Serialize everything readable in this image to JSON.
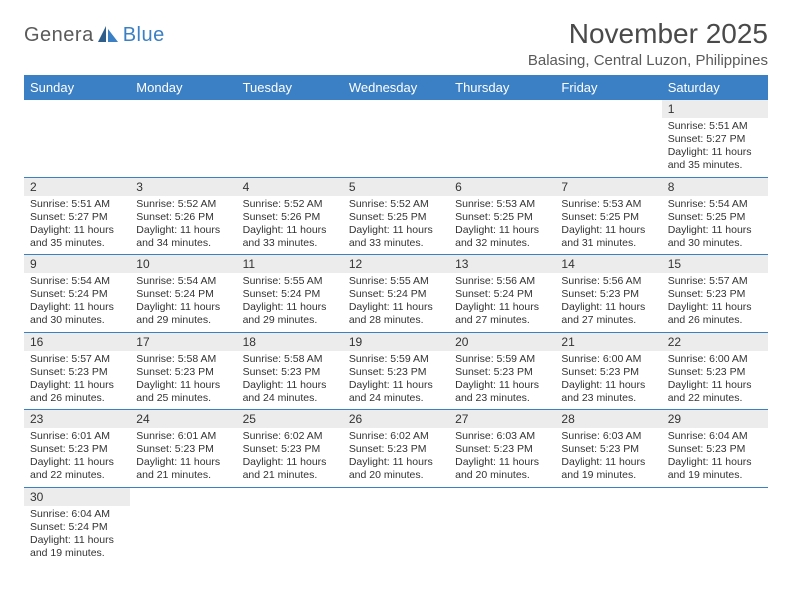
{
  "logo": {
    "text1": "Genera",
    "text2": "Blue"
  },
  "title": "November 2025",
  "subtitle": "Balasing, Central Luzon, Philippines",
  "colors": {
    "header_bg": "#3b7fc4",
    "header_fg": "#ffffff",
    "daynum_bg": "#ececec",
    "rule": "#3b7fc4",
    "text": "#333333",
    "logo_gray": "#5a5a5a",
    "logo_blue": "#3b7fc4"
  },
  "day_names": [
    "Sunday",
    "Monday",
    "Tuesday",
    "Wednesday",
    "Thursday",
    "Friday",
    "Saturday"
  ],
  "weeks": [
    [
      null,
      null,
      null,
      null,
      null,
      null,
      {
        "n": "1",
        "sr": "5:51 AM",
        "ss": "5:27 PM",
        "dl": "11 hours and 35 minutes."
      }
    ],
    [
      {
        "n": "2",
        "sr": "5:51 AM",
        "ss": "5:27 PM",
        "dl": "11 hours and 35 minutes."
      },
      {
        "n": "3",
        "sr": "5:52 AM",
        "ss": "5:26 PM",
        "dl": "11 hours and 34 minutes."
      },
      {
        "n": "4",
        "sr": "5:52 AM",
        "ss": "5:26 PM",
        "dl": "11 hours and 33 minutes."
      },
      {
        "n": "5",
        "sr": "5:52 AM",
        "ss": "5:25 PM",
        "dl": "11 hours and 33 minutes."
      },
      {
        "n": "6",
        "sr": "5:53 AM",
        "ss": "5:25 PM",
        "dl": "11 hours and 32 minutes."
      },
      {
        "n": "7",
        "sr": "5:53 AM",
        "ss": "5:25 PM",
        "dl": "11 hours and 31 minutes."
      },
      {
        "n": "8",
        "sr": "5:54 AM",
        "ss": "5:25 PM",
        "dl": "11 hours and 30 minutes."
      }
    ],
    [
      {
        "n": "9",
        "sr": "5:54 AM",
        "ss": "5:24 PM",
        "dl": "11 hours and 30 minutes."
      },
      {
        "n": "10",
        "sr": "5:54 AM",
        "ss": "5:24 PM",
        "dl": "11 hours and 29 minutes."
      },
      {
        "n": "11",
        "sr": "5:55 AM",
        "ss": "5:24 PM",
        "dl": "11 hours and 29 minutes."
      },
      {
        "n": "12",
        "sr": "5:55 AM",
        "ss": "5:24 PM",
        "dl": "11 hours and 28 minutes."
      },
      {
        "n": "13",
        "sr": "5:56 AM",
        "ss": "5:24 PM",
        "dl": "11 hours and 27 minutes."
      },
      {
        "n": "14",
        "sr": "5:56 AM",
        "ss": "5:23 PM",
        "dl": "11 hours and 27 minutes."
      },
      {
        "n": "15",
        "sr": "5:57 AM",
        "ss": "5:23 PM",
        "dl": "11 hours and 26 minutes."
      }
    ],
    [
      {
        "n": "16",
        "sr": "5:57 AM",
        "ss": "5:23 PM",
        "dl": "11 hours and 26 minutes."
      },
      {
        "n": "17",
        "sr": "5:58 AM",
        "ss": "5:23 PM",
        "dl": "11 hours and 25 minutes."
      },
      {
        "n": "18",
        "sr": "5:58 AM",
        "ss": "5:23 PM",
        "dl": "11 hours and 24 minutes."
      },
      {
        "n": "19",
        "sr": "5:59 AM",
        "ss": "5:23 PM",
        "dl": "11 hours and 24 minutes."
      },
      {
        "n": "20",
        "sr": "5:59 AM",
        "ss": "5:23 PM",
        "dl": "11 hours and 23 minutes."
      },
      {
        "n": "21",
        "sr": "6:00 AM",
        "ss": "5:23 PM",
        "dl": "11 hours and 23 minutes."
      },
      {
        "n": "22",
        "sr": "6:00 AM",
        "ss": "5:23 PM",
        "dl": "11 hours and 22 minutes."
      }
    ],
    [
      {
        "n": "23",
        "sr": "6:01 AM",
        "ss": "5:23 PM",
        "dl": "11 hours and 22 minutes."
      },
      {
        "n": "24",
        "sr": "6:01 AM",
        "ss": "5:23 PM",
        "dl": "11 hours and 21 minutes."
      },
      {
        "n": "25",
        "sr": "6:02 AM",
        "ss": "5:23 PM",
        "dl": "11 hours and 21 minutes."
      },
      {
        "n": "26",
        "sr": "6:02 AM",
        "ss": "5:23 PM",
        "dl": "11 hours and 20 minutes."
      },
      {
        "n": "27",
        "sr": "6:03 AM",
        "ss": "5:23 PM",
        "dl": "11 hours and 20 minutes."
      },
      {
        "n": "28",
        "sr": "6:03 AM",
        "ss": "5:23 PM",
        "dl": "11 hours and 19 minutes."
      },
      {
        "n": "29",
        "sr": "6:04 AM",
        "ss": "5:23 PM",
        "dl": "11 hours and 19 minutes."
      }
    ],
    [
      {
        "n": "30",
        "sr": "6:04 AM",
        "ss": "5:24 PM",
        "dl": "11 hours and 19 minutes."
      },
      null,
      null,
      null,
      null,
      null,
      null
    ]
  ],
  "labels": {
    "sunrise": "Sunrise:",
    "sunset": "Sunset:",
    "daylight": "Daylight:"
  }
}
